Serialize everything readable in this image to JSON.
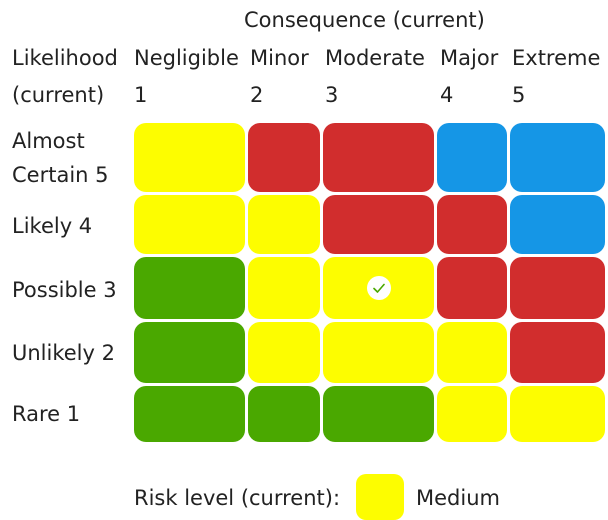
{
  "header": {
    "consequence_title": "Consequence (current)",
    "likelihood_title": "Likelihood",
    "likelihood_sub": "(current)"
  },
  "consequence": [
    {
      "name": "Negligible",
      "num": "1"
    },
    {
      "name": "Minor",
      "num": "2"
    },
    {
      "name": "Moderate",
      "num": "3"
    },
    {
      "name": "Major",
      "num": "4"
    },
    {
      "name": "Extreme",
      "num": "5"
    }
  ],
  "likelihood": [
    {
      "line1": "Almost",
      "line2": "Certain 5"
    },
    {
      "line1": "Likely 4"
    },
    {
      "line1": "Possible 3"
    },
    {
      "line1": "Unlikely 2"
    },
    {
      "line1": "Rare 1"
    }
  ],
  "colors": {
    "yellow": "#fdfd00",
    "red": "#d12d2d",
    "blue": "#1596e6",
    "green": "#4aa800"
  },
  "matrix": [
    [
      "yellow",
      "red",
      "red",
      "blue",
      "blue"
    ],
    [
      "yellow",
      "yellow",
      "red",
      "red",
      "blue"
    ],
    [
      "green",
      "yellow",
      "yellow",
      "red",
      "red"
    ],
    [
      "green",
      "yellow",
      "yellow",
      "yellow",
      "red"
    ],
    [
      "green",
      "green",
      "green",
      "yellow",
      "yellow"
    ]
  ],
  "selected": {
    "row": 2,
    "col": 2,
    "icon": "check-icon"
  },
  "legend": {
    "label": "Risk level (current):",
    "value": "Medium",
    "color": "yellow"
  }
}
